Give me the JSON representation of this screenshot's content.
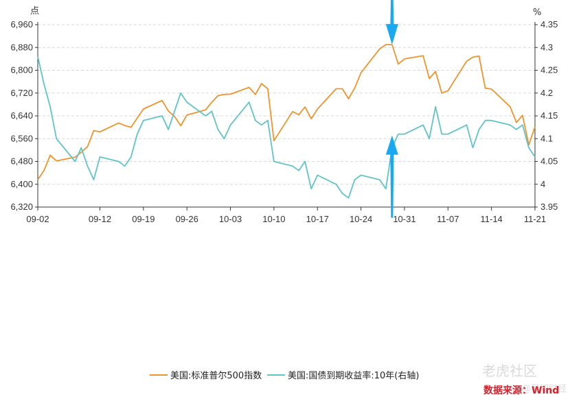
{
  "chart_data": {
    "type": "line",
    "left_unit": "点",
    "right_unit": "%",
    "x_tick_labels": [
      "09-02",
      "09-12",
      "09-19",
      "09-26",
      "10-03",
      "10-10",
      "10-17",
      "10-24",
      "10-31",
      "11-07",
      "11-14",
      "11-21"
    ],
    "y_left": {
      "min": 6320,
      "max": 6960,
      "ticks": [
        "6,320",
        "6,400",
        "6,480",
        "6,560",
        "6,640",
        "6,720",
        "6,800",
        "6,880",
        "6,960"
      ]
    },
    "y_right": {
      "min": 3.95,
      "max": 4.35,
      "ticks": [
        "3.95",
        "4",
        "4.05",
        "4.1",
        "4.15",
        "4.2",
        "4.25",
        "4.3",
        "4.35"
      ]
    },
    "grid": "horizontal dashed",
    "legend_placement": "bottom",
    "series": [
      {
        "name": "美国:标准普尔500指数",
        "color": "#f0932b",
        "axis": "left",
        "points": [
          [
            "09-02",
            6416
          ],
          [
            "09-03",
            6448
          ],
          [
            "09-04",
            6502
          ],
          [
            "09-05",
            6482
          ],
          [
            "09-08",
            6495
          ],
          [
            "09-09",
            6512
          ],
          [
            "09-10",
            6532
          ],
          [
            "09-11",
            6588
          ],
          [
            "09-12",
            6584
          ],
          [
            "09-15",
            6615
          ],
          [
            "09-16",
            6606
          ],
          [
            "09-17",
            6600
          ],
          [
            "09-18",
            6632
          ],
          [
            "09-19",
            6664
          ],
          [
            "09-22",
            6694
          ],
          [
            "09-23",
            6657
          ],
          [
            "09-24",
            6638
          ],
          [
            "09-25",
            6605
          ],
          [
            "09-26",
            6643
          ],
          [
            "09-29",
            6661
          ],
          [
            "09-30",
            6688
          ],
          [
            "10-01",
            6711
          ],
          [
            "10-02",
            6715
          ],
          [
            "10-03",
            6716
          ],
          [
            "10-06",
            6740
          ],
          [
            "10-07",
            6715
          ],
          [
            "10-08",
            6753
          ],
          [
            "10-09",
            6735
          ],
          [
            "10-10",
            6553
          ],
          [
            "10-13",
            6655
          ],
          [
            "10-14",
            6644
          ],
          [
            "10-15",
            6671
          ],
          [
            "10-16",
            6630
          ],
          [
            "10-17",
            6664
          ],
          [
            "10-20",
            6735
          ],
          [
            "10-21",
            6735
          ],
          [
            "10-22",
            6700
          ],
          [
            "10-23",
            6738
          ],
          [
            "10-24",
            6791
          ],
          [
            "10-27",
            6875
          ],
          [
            "10-28",
            6890
          ],
          [
            "10-29",
            6890
          ],
          [
            "10-30",
            6822
          ],
          [
            "10-31",
            6840
          ],
          [
            "11-03",
            6851
          ],
          [
            "11-04",
            6771
          ],
          [
            "11-05",
            6796
          ],
          [
            "11-06",
            6720
          ],
          [
            "11-07",
            6728
          ],
          [
            "11-10",
            6832
          ],
          [
            "11-11",
            6846
          ],
          [
            "11-12",
            6850
          ],
          [
            "11-13",
            6737
          ],
          [
            "11-14",
            6734
          ],
          [
            "11-17",
            6672
          ],
          [
            "11-18",
            6617
          ],
          [
            "11-19",
            6642
          ],
          [
            "11-20",
            6538
          ],
          [
            "11-21",
            6602
          ]
        ]
      },
      {
        "name": "美国:国债到期收益率:10年(右轴)",
        "color": "#5fc4c6",
        "axis": "right",
        "points": [
          [
            "09-02",
            4.28
          ],
          [
            "09-03",
            4.22
          ],
          [
            "09-04",
            4.17
          ],
          [
            "09-05",
            4.1
          ],
          [
            "09-08",
            4.05
          ],
          [
            "09-09",
            4.08
          ],
          [
            "09-10",
            4.04
          ],
          [
            "09-11",
            4.01
          ],
          [
            "09-12",
            4.06
          ],
          [
            "09-15",
            4.05
          ],
          [
            "09-16",
            4.04
          ],
          [
            "09-17",
            4.06
          ],
          [
            "09-18",
            4.11
          ],
          [
            "09-19",
            4.14
          ],
          [
            "09-22",
            4.15
          ],
          [
            "09-23",
            4.12
          ],
          [
            "09-24",
            4.16
          ],
          [
            "09-25",
            4.2
          ],
          [
            "09-26",
            4.18
          ],
          [
            "09-29",
            4.15
          ],
          [
            "09-30",
            4.16
          ],
          [
            "10-01",
            4.12
          ],
          [
            "10-02",
            4.1
          ],
          [
            "10-03",
            4.13
          ],
          [
            "10-06",
            4.18
          ],
          [
            "10-07",
            4.14
          ],
          [
            "10-08",
            4.13
          ],
          [
            "10-09",
            4.14
          ],
          [
            "10-10",
            4.05
          ],
          [
            "10-13",
            4.04
          ],
          [
            "10-14",
            4.03
          ],
          [
            "10-15",
            4.05
          ],
          [
            "10-16",
            3.99
          ],
          [
            "10-17",
            4.02
          ],
          [
            "10-20",
            4.0
          ],
          [
            "10-21",
            3.98
          ],
          [
            "10-22",
            3.97
          ],
          [
            "10-23",
            4.01
          ],
          [
            "10-24",
            4.02
          ],
          [
            "10-27",
            4.01
          ],
          [
            "10-28",
            3.99
          ],
          [
            "10-29",
            4.08
          ],
          [
            "10-30",
            4.11
          ],
          [
            "10-31",
            4.11
          ],
          [
            "11-03",
            4.13
          ],
          [
            "11-04",
            4.1
          ],
          [
            "11-05",
            4.17
          ],
          [
            "11-06",
            4.11
          ],
          [
            "11-07",
            4.11
          ],
          [
            "11-10",
            4.13
          ],
          [
            "11-11",
            4.08
          ],
          [
            "11-12",
            4.12
          ],
          [
            "11-13",
            4.14
          ],
          [
            "11-14",
            4.14
          ],
          [
            "11-17",
            4.13
          ],
          [
            "11-18",
            4.12
          ],
          [
            "11-19",
            4.13
          ],
          [
            "11-20",
            4.08
          ],
          [
            "11-21",
            4.06
          ]
        ]
      }
    ],
    "annotations": [
      {
        "type": "arrow-down",
        "color": "#1aa8f0",
        "at": "10-29",
        "axis": "left",
        "value": 6890
      },
      {
        "type": "arrow-up",
        "color": "#1aa8f0",
        "at": "10-29",
        "axis": "right",
        "value": 4.11
      }
    ]
  },
  "legend": {
    "sp500": "美国:标准普尔500指数",
    "yield10": "美国:国债到期收益率:10年(右轴)"
  },
  "source": "数据来源：Wind",
  "watermark": "老虎社区",
  "watermark2": "@早知财经"
}
